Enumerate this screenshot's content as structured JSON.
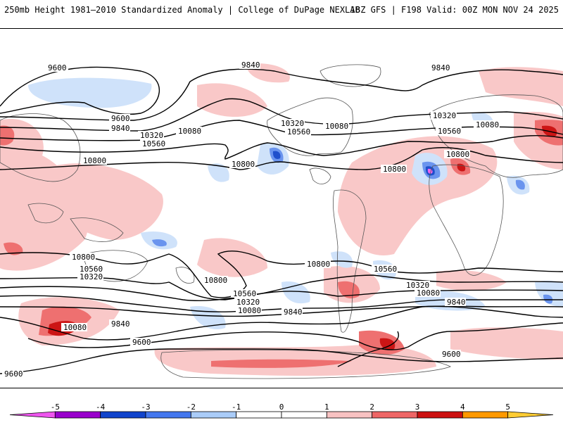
{
  "header": {
    "title_left": "250mb Height 1981–2010 Standardized Anomaly | College of DuPage NEXLAB",
    "title_right": "18Z GFS | F198 Valid: 00Z MON NOV 24 2025"
  },
  "contour_labels": {
    "a": "9600",
    "b": "9840",
    "c": "9840",
    "d": "9600",
    "e": "9840",
    "f": "10320",
    "g": "10080",
    "h": "10560",
    "i": "10800",
    "j": "10320",
    "k": "10560",
    "l": "10080",
    "m": "10800",
    "n": "10320",
    "o": "10560",
    "p": "10080",
    "q": "10800",
    "r": "10800",
    "s": "10800",
    "t": "10560",
    "u": "10320",
    "v": "10800",
    "w": "10800",
    "x": "10560",
    "y": "10560",
    "z": "10320",
    "aa": "10080",
    "ab": "9840",
    "ac": "10320",
    "ad": "10080",
    "ae": "9840",
    "af": "10080",
    "ag": "9840",
    "ah": "9600",
    "ai": "9600",
    "aj": "9600"
  },
  "colorbar": {
    "ticks": [
      "-5",
      "-4",
      "-3",
      "-2",
      "-1",
      "0",
      "1",
      "2",
      "3",
      "4",
      "5"
    ],
    "colors": [
      "#ee55ee",
      "#9900cc",
      "#1144cc",
      "#4477ee",
      "#aaccf8",
      "#ffffff",
      "#ffffff",
      "#f8c2c2",
      "#ee6666",
      "#cc1111",
      "#ff9900",
      "#ffcc33"
    ]
  },
  "legend_colors": {
    "neg_light": "#cfe2fa",
    "neg_mid": "#6a94ee",
    "neg_dark": "#1f4fcc",
    "pos_light": "#f9c8c8",
    "pos_mid": "#ee7070",
    "pos_dark": "#cc1515",
    "magenta": "#ee66ee"
  }
}
